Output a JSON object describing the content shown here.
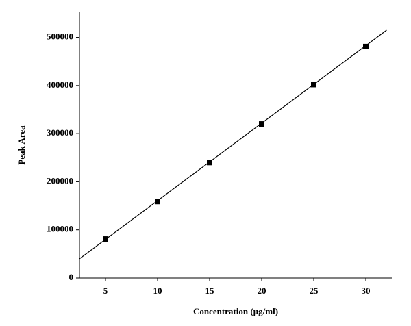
{
  "chart_data": {
    "type": "scatter",
    "x_label": "Concentration (µg/ml)",
    "y_label": "Peak Area",
    "x": [
      5,
      10,
      15,
      20,
      25,
      30
    ],
    "values": [
      81000,
      159000,
      240000,
      320000,
      402000,
      481000
    ],
    "color": "#000000",
    "fit_line": {
      "x": [
        2.5,
        32
      ],
      "values": [
        40000,
        515000
      ]
    },
    "xlim": [
      2.5,
      32.5
    ],
    "xticks": [
      5,
      10,
      15,
      20,
      25,
      30
    ],
    "ylim": [
      0,
      552000
    ],
    "yticks": [
      0,
      100000,
      200000,
      300000,
      400000,
      500000
    ],
    "grid": false
  }
}
